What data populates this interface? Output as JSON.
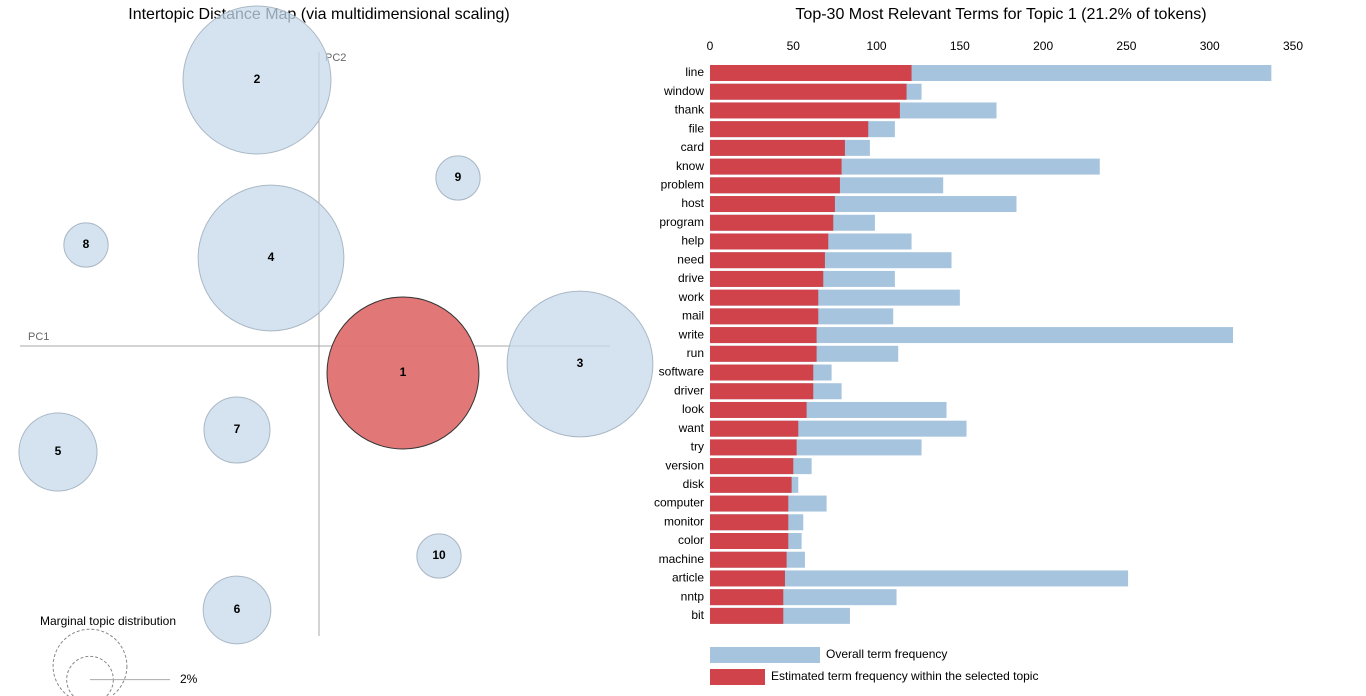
{
  "chart_data": [
    {
      "type": "bubble",
      "title": "Intertopic Distance Map (via multidimensional scaling)",
      "xlabel": "PC1",
      "ylabel": "PC2",
      "xlim": [
        -0.299,
        0.291
      ],
      "ylim": [
        -0.29,
        0.306
      ],
      "labels": [
        "1",
        "2",
        "3",
        "4",
        "5",
        "6",
        "7",
        "8",
        "9",
        "10"
      ],
      "x": [
        0.084,
        -0.062,
        0.261,
        -0.048,
        -0.261,
        -0.082,
        -0.082,
        -0.233,
        0.139,
        0.12
      ],
      "y": [
        -0.027,
        0.266,
        -0.018,
        0.088,
        -0.106,
        -0.264,
        -0.084,
        0.101,
        0.168,
        -0.21
      ],
      "sizes": [
        21.2,
        20.1,
        19.5,
        19.5,
        5.6,
        4.2,
        4.0,
        1.8,
        1.8,
        1.8
      ],
      "color": "#c6d9ea",
      "selected_color": "#e07070",
      "selected": "1",
      "size_legend": {
        "title": "Marginal topic distribution",
        "values": [
          2,
          5
        ],
        "value_labels": [
          "2%",
          null
        ]
      }
    },
    {
      "type": "barh",
      "title": "Top-30 Most Relevant Terms for Topic 1 (21.2% of tokens)",
      "categories": [
        "line",
        "window",
        "thank",
        "file",
        "card",
        "know",
        "problem",
        "host",
        "program",
        "help",
        "need",
        "drive",
        "work",
        "mail",
        "write",
        "run",
        "software",
        "driver",
        "look",
        "want",
        "try",
        "version",
        "disk",
        "computer",
        "monitor",
        "color",
        "machine",
        "article",
        "nntp",
        "bit"
      ],
      "series": [
        {
          "name": "Overall term frequency",
          "color": "#a6c4de",
          "values": [
            337,
            127,
            172,
            111,
            96,
            234,
            140,
            184,
            99,
            121,
            145,
            111,
            150,
            110,
            314,
            113,
            73,
            79,
            142,
            154,
            127,
            61,
            53,
            70,
            56,
            55,
            57,
            251,
            112,
            84
          ]
        },
        {
          "name": "Estimated term frequency within the selected topic",
          "color": "#d0434b",
          "values": [
            121,
            118,
            114,
            95,
            81,
            79,
            78,
            75,
            74,
            71,
            69,
            68,
            65,
            65,
            64,
            64,
            62,
            62,
            58,
            53,
            52,
            50,
            49,
            47,
            47,
            47,
            46,
            45,
            44,
            44
          ]
        }
      ],
      "xlim": [
        0,
        350
      ],
      "xticks": [
        0,
        50,
        100,
        150,
        200,
        250,
        300,
        350
      ],
      "grid": false
    }
  ]
}
